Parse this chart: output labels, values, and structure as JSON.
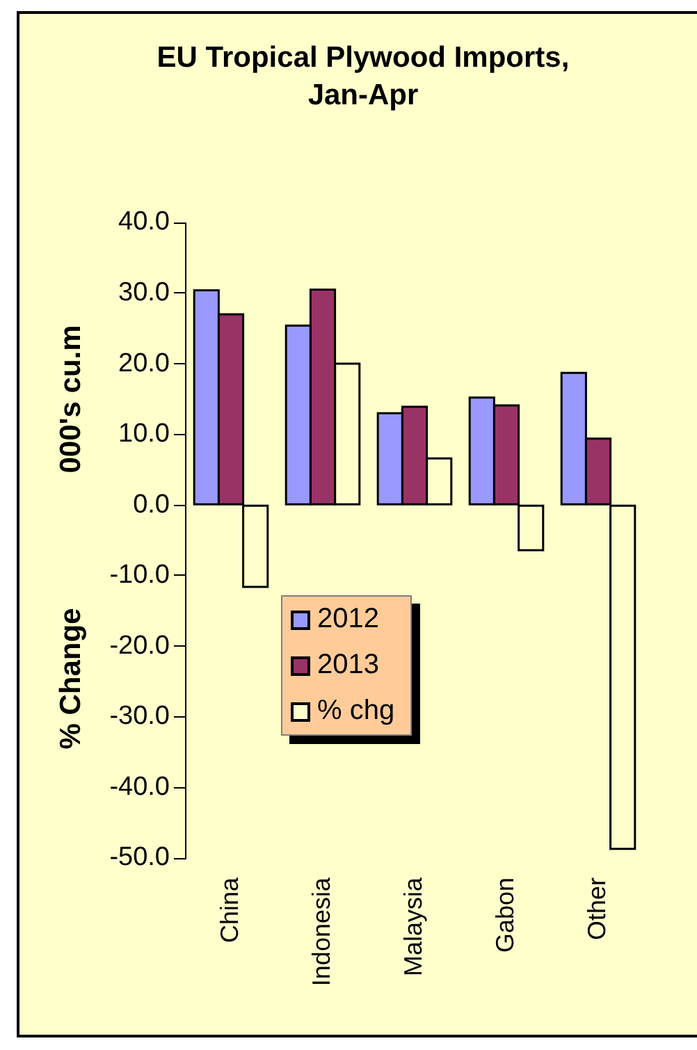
{
  "chart_data": {
    "type": "bar",
    "title": "EU Tropical Plywood Imports, Jan-Apr",
    "ylabel": "000's cu.m",
    "annotations": [
      "% Change"
    ],
    "categories": [
      "China",
      "Indonesia",
      "Malaysia",
      "Gabon",
      "Other"
    ],
    "series": [
      {
        "name": "2012",
        "color": "#9999ff",
        "values": [
          30.4,
          25.4,
          13.0,
          15.2,
          18.7
        ]
      },
      {
        "name": "2013",
        "color": "#993366",
        "values": [
          27.0,
          30.5,
          13.9,
          14.1,
          9.4
        ]
      },
      {
        "name": "% chg",
        "color": "#ffffcc",
        "values": [
          -11.6,
          20.0,
          6.6,
          -6.4,
          -48.7
        ]
      }
    ],
    "ylim": [
      -50,
      40
    ],
    "yticks": [
      {
        "value": -50,
        "label": "-50.0"
      },
      {
        "value": -40,
        "label": "-40.0"
      },
      {
        "value": -30,
        "label": "-30.0"
      },
      {
        "value": -20,
        "label": "-20.0"
      },
      {
        "value": -10,
        "label": "-10.0"
      },
      {
        "value": 0,
        "label": "0.0"
      },
      {
        "value": 10,
        "label": "10.0"
      },
      {
        "value": 20,
        "label": "20.0"
      },
      {
        "value": 30,
        "label": "30.0"
      },
      {
        "value": 40,
        "label": "40.0"
      }
    ],
    "legend": "bottom left"
  }
}
